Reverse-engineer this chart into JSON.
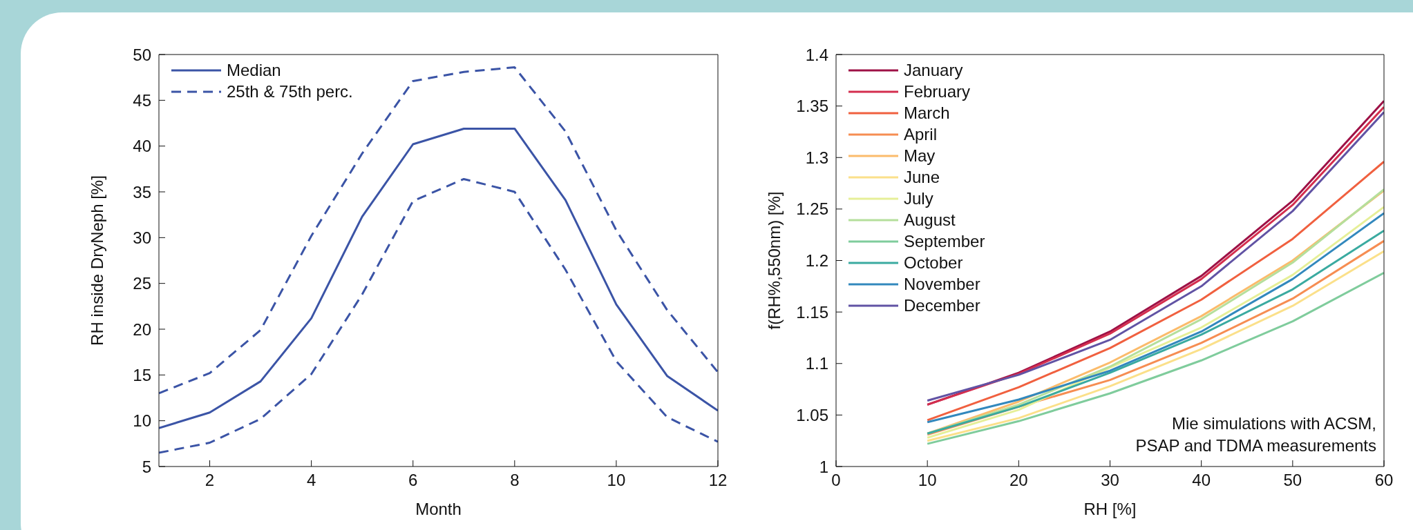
{
  "chart_data": [
    {
      "type": "line",
      "xlabel": "Month",
      "ylabel": "RH inside DryNeph [%]",
      "x": [
        1,
        2,
        3,
        4,
        5,
        6,
        7,
        8,
        9,
        10,
        11,
        12
      ],
      "xlim": [
        1,
        12
      ],
      "xticks": [
        2,
        4,
        6,
        8,
        10,
        12
      ],
      "ylim": [
        5,
        50
      ],
      "yticks": [
        5,
        10,
        15,
        20,
        25,
        30,
        35,
        40,
        45,
        50
      ],
      "legend": "top left",
      "series": [
        {
          "name": "Median",
          "color": "#3b54a6",
          "line_style": "solid",
          "values": [
            9.2,
            10.9,
            14.3,
            21.2,
            32.3,
            40.2,
            41.9,
            41.9,
            34.1,
            22.7,
            14.9,
            11.1
          ]
        },
        {
          "name": "25th & 75th perc.",
          "color": "#3b54a6",
          "line_style": "dashed",
          "values": [
            13,
            15.2,
            19.9,
            30.2,
            39.2,
            47.1,
            48.1,
            48.6,
            41.6,
            30.8,
            22.1,
            15.3
          ]
        },
        {
          "color": "#3b54a6",
          "line_style": "dashed",
          "values": [
            6.5,
            7.6,
            10.2,
            15.1,
            23.8,
            34,
            36.4,
            35,
            26.5,
            16.5,
            10.4,
            7.7
          ]
        }
      ]
    },
    {
      "type": "line",
      "xlabel": "RH [%]",
      "ylabel": "f(RH%,550nm) [%]",
      "x": [
        10,
        20,
        30,
        40,
        50,
        60
      ],
      "xlim": [
        0,
        60
      ],
      "xticks": [
        0,
        10,
        20,
        30,
        40,
        50,
        60
      ],
      "ylim": [
        1,
        1.4
      ],
      "yticks": [
        1,
        1.05,
        1.1,
        1.15,
        1.2,
        1.25,
        1.3,
        1.35,
        1.4
      ],
      "legend": "top left",
      "annotations": [
        "Mie simulations with ACSM,\nPSAP and TDMA measurements"
      ],
      "series": [
        {
          "name": "January",
          "color": "#9e1146",
          "values": [
            1.06,
            1.091,
            1.131,
            1.185,
            1.258,
            1.355
          ]
        },
        {
          "name": "February",
          "color": "#d42e4e",
          "values": [
            1.06,
            1.09,
            1.129,
            1.182,
            1.254,
            1.349
          ]
        },
        {
          "name": "March",
          "color": "#f0603f",
          "values": [
            1.045,
            1.077,
            1.115,
            1.162,
            1.221,
            1.296
          ]
        },
        {
          "name": "April",
          "color": "#f68d52",
          "values": [
            1.031,
            1.058,
            1.084,
            1.12,
            1.163,
            1.219
          ]
        },
        {
          "name": "May",
          "color": "#fbbb6b",
          "values": [
            1.032,
            1.063,
            1.101,
            1.146,
            1.2,
            1.268
          ]
        },
        {
          "name": "June",
          "color": "#fbe08a",
          "values": [
            1.025,
            1.047,
            1.078,
            1.114,
            1.156,
            1.209
          ]
        },
        {
          "name": "July",
          "color": "#e6ef98",
          "values": [
            1.028,
            1.055,
            1.096,
            1.135,
            1.186,
            1.252
          ]
        },
        {
          "name": "August",
          "color": "#b5df9c",
          "values": [
            1.032,
            1.06,
            1.097,
            1.143,
            1.198,
            1.269
          ]
        },
        {
          "name": "September",
          "color": "#7fcc9c",
          "values": [
            1.022,
            1.044,
            1.071,
            1.103,
            1.141,
            1.188
          ]
        },
        {
          "name": "October",
          "color": "#3aaaa0",
          "values": [
            1.032,
            1.058,
            1.091,
            1.128,
            1.172,
            1.229
          ]
        },
        {
          "name": "November",
          "color": "#3288bd",
          "values": [
            1.043,
            1.065,
            1.093,
            1.131,
            1.182,
            1.246
          ]
        },
        {
          "name": "December",
          "color": "#6153a4",
          "values": [
            1.064,
            1.089,
            1.123,
            1.175,
            1.248,
            1.344
          ]
        }
      ]
    }
  ]
}
